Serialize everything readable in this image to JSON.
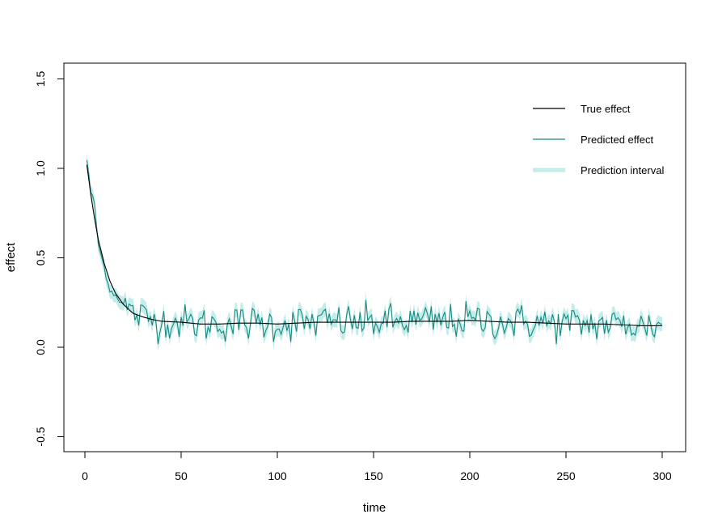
{
  "chart_data": {
    "type": "line",
    "xlabel": "time",
    "ylabel": "effect",
    "xlim": [
      0,
      300
    ],
    "ylim": [
      -0.5,
      1.5
    ],
    "x_ticks": [
      0,
      50,
      100,
      150,
      200,
      250,
      300
    ],
    "y_ticks": [
      -0.5,
      0.0,
      0.5,
      1.0,
      1.5
    ],
    "x_tick_labels": [
      "0",
      "50",
      "100",
      "150",
      "200",
      "250",
      "300"
    ],
    "y_tick_labels": [
      "-0.5",
      "0.0",
      "0.5",
      "1.0",
      "1.5"
    ],
    "grid": false,
    "legend_position": "top-right",
    "legend": [
      {
        "label": "True effect",
        "color": "#000000"
      },
      {
        "label": "Predicted effect",
        "color": "#1a8a80"
      },
      {
        "label": "Prediction interval",
        "color": "#c4ecea"
      }
    ],
    "true_effect": {
      "x": [
        1,
        3,
        5,
        7,
        10,
        13,
        16,
        20,
        25,
        30,
        35,
        40,
        50,
        60,
        70,
        80,
        90,
        100,
        110,
        120,
        130,
        140,
        150,
        160,
        170,
        180,
        190,
        200,
        210,
        220,
        230,
        240,
        250,
        260,
        270,
        280,
        290,
        300
      ],
      "y": [
        1.02,
        0.86,
        0.72,
        0.6,
        0.47,
        0.37,
        0.3,
        0.24,
        0.19,
        0.17,
        0.155,
        0.145,
        0.14,
        0.13,
        0.13,
        0.135,
        0.135,
        0.13,
        0.135,
        0.14,
        0.14,
        0.14,
        0.14,
        0.14,
        0.145,
        0.145,
        0.145,
        0.15,
        0.145,
        0.14,
        0.14,
        0.135,
        0.13,
        0.13,
        0.13,
        0.125,
        0.12,
        0.12
      ]
    },
    "predicted_effect": {
      "x_start": 1,
      "x_end": 300,
      "anchor_x": [
        1,
        3,
        5,
        7,
        10,
        13,
        16,
        20
      ],
      "anchor_y": [
        1.05,
        0.87,
        0.8,
        0.57,
        0.45,
        0.32,
        0.29,
        0.24
      ],
      "noise_sd": 0.05
    },
    "prediction_interval": {
      "half_width": 0.04
    }
  }
}
